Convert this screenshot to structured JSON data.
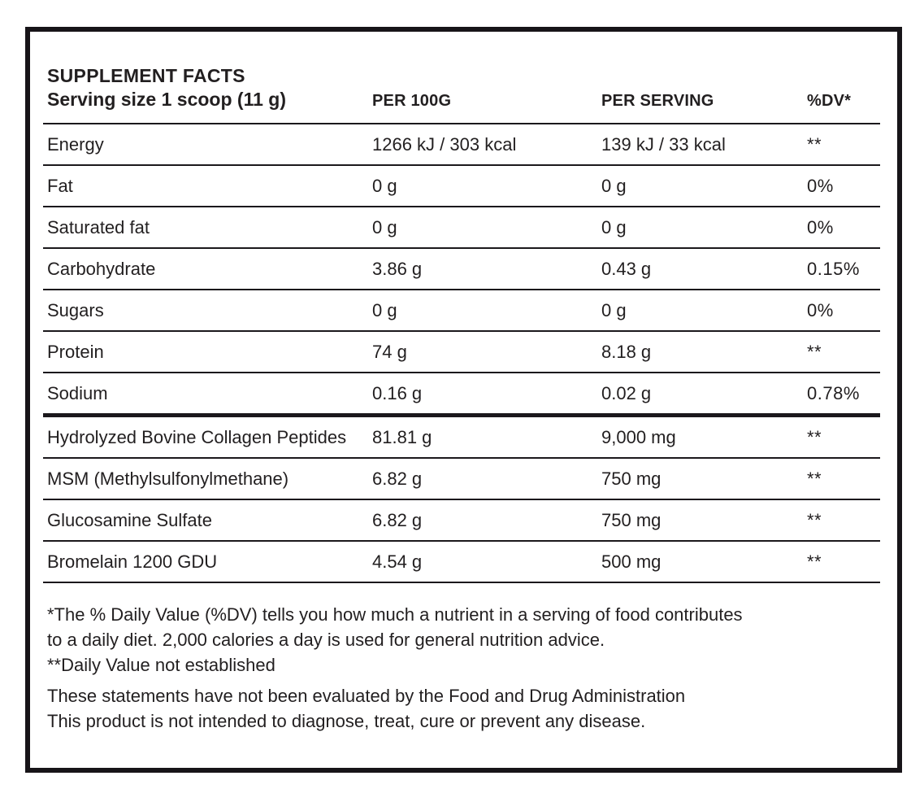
{
  "label": {
    "title": "SUPPLEMENT FACTS",
    "serving_size": "Serving size 1 scoop (11 g)"
  },
  "table": {
    "columns": {
      "per_100g": "PER 100G",
      "per_serving": "PER SERVING",
      "dv": "%DV*"
    },
    "nutrients": [
      {
        "name": "Energy",
        "per_100g": "1266 kJ / 303 kcal",
        "per_serving": "139 kJ / 33 kcal",
        "dv": "**"
      },
      {
        "name": "Fat",
        "per_100g": "0 g",
        "per_serving": "0 g",
        "dv": "0%"
      },
      {
        "name": "Saturated fat",
        "per_100g": "0 g",
        "per_serving": "0 g",
        "dv": "0%"
      },
      {
        "name": "Carbohydrate",
        "per_100g": "3.86 g",
        "per_serving": "0.43 g",
        "dv": "0.15%"
      },
      {
        "name": "Sugars",
        "per_100g": "0 g",
        "per_serving": "0 g",
        "dv": "0%"
      },
      {
        "name": "Protein",
        "per_100g": "74 g",
        "per_serving": "8.18 g",
        "dv": "**"
      },
      {
        "name": "Sodium",
        "per_100g": "0.16 g",
        "per_serving": "0.02 g",
        "dv": "0.78%"
      }
    ],
    "ingredients": [
      {
        "name": "Hydrolyzed Bovine Collagen Peptides",
        "per_100g": "81.81 g",
        "per_serving": "9,000 mg",
        "dv": "**"
      },
      {
        "name": "MSM (Methylsulfonylmethane)",
        "per_100g": "6.82 g",
        "per_serving": "750 mg",
        "dv": "**"
      },
      {
        "name": "Glucosamine Sulfate",
        "per_100g": "6.82 g",
        "per_serving": "750 mg",
        "dv": "**"
      },
      {
        "name": "Bromelain 1200 GDU",
        "per_100g": "4.54 g",
        "per_serving": "500 mg",
        "dv": "**"
      }
    ]
  },
  "footnotes": {
    "dv_line1": "*The % Daily Value (%DV) tells you how much a nutrient in a serving of food contributes",
    "dv_line2": "to a daily diet. 2,000 calories a day is used for general nutrition advice.",
    "dv_line3": "**Daily Value not established",
    "fda_line1": "These statements have not been evaluated by the Food and Drug Administration",
    "fda_line2": "This product is not intended to diagnose, treat, cure or prevent any disease."
  },
  "colors": {
    "text": "#221f20",
    "rule": "#1b181c",
    "border": "#171418",
    "background": "#ffffff"
  }
}
